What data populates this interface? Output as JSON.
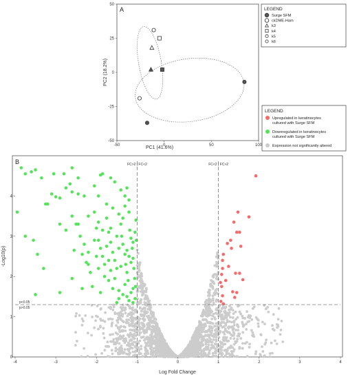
{
  "chart_data": [
    {
      "type": "scatter",
      "panel": "A",
      "xlabel": "PC1 (41.6%)",
      "ylabel": "PC2 (18.2%)",
      "xlim": [
        -50,
        100
      ],
      "ylim": [
        -50,
        50
      ],
      "xticks": [
        "-50",
        "0",
        "50",
        "100"
      ],
      "yticks": [
        "-50",
        "-25",
        "0",
        "25",
        "50"
      ],
      "legend": {
        "title": "LEGEND",
        "position": "right",
        "entries": [
          {
            "label": "Surge SFM",
            "marker": "filled-circle"
          },
          {
            "label": "ckDME-Ham",
            "marker": "open-circle"
          },
          {
            "label": "k3",
            "marker": "triangle"
          },
          {
            "label": "k4",
            "marker": "square"
          },
          {
            "label": "k5",
            "marker": "circle"
          },
          {
            "label": "k6",
            "marker": "circle"
          }
        ]
      },
      "points": [
        {
          "x": -11,
          "y": 31,
          "marker": "circle",
          "filled": false
        },
        {
          "x": -5,
          "y": 25,
          "marker": "square",
          "filled": false
        },
        {
          "x": -13,
          "y": 18,
          "marker": "triangle",
          "filled": false
        },
        {
          "x": -14,
          "y": 2,
          "marker": "triangle",
          "filled": true
        },
        {
          "x": -2,
          "y": 2,
          "marker": "square",
          "filled": true
        },
        {
          "x": -26,
          "y": -19,
          "marker": "circle",
          "filled": false
        },
        {
          "x": -18,
          "y": -37,
          "marker": "circle",
          "filled": true
        },
        {
          "x": 85,
          "y": -7,
          "marker": "circle",
          "filled": true
        }
      ],
      "ellipses": [
        {
          "cx": -15,
          "cy": 7,
          "rx": 12,
          "ry": 27,
          "angle": 10
        },
        {
          "cx": 27,
          "cy": -13,
          "rx": 58,
          "ry": 23,
          "angle": 8
        }
      ]
    },
    {
      "type": "scatter",
      "panel": "B",
      "xlabel": "Log Fold Change",
      "ylabel": "-Log10(p)",
      "xlim": [
        -4,
        4
      ],
      "ylim": [
        0,
        5
      ],
      "xticks": [
        "-4",
        "-3",
        "-2",
        "-1",
        "0",
        "1",
        "2",
        "3",
        "4"
      ],
      "yticks": [
        "0",
        "1",
        "2",
        "3",
        "4"
      ],
      "thresholds": {
        "fc_left": -1,
        "fc_right": 1,
        "p_line": 1.3,
        "fc_left_label": "FC>2 | FC<2",
        "fc_right_label": "FC<2 | FC>2",
        "p_above_label": "p<0.05",
        "p_below_label": "p>0.05"
      },
      "legend": {
        "title": "LEGEND",
        "position": "top-right",
        "entries": [
          {
            "label_lines": [
              "Upregulated  in keratinocytes",
              "cultured with Surge SFM"
            ],
            "color": "#f36b6b"
          },
          {
            "label_lines": [
              "Downregulated in keratinocytes",
              "cultured with Surge SFM"
            ],
            "color": "#55e35a"
          },
          {
            "label_lines": [
              "Expression not significantly altered"
            ],
            "color": "#cccccc"
          }
        ]
      },
      "series": [
        {
          "name": "Upregulated  in keratinocytes cultured with Surge SFM",
          "color": "#f36b6b",
          "points": [
            [
              1.92,
              4.5
            ],
            [
              1.75,
              3.48
            ],
            [
              1.48,
              3.6
            ],
            [
              1.38,
              3.35
            ],
            [
              1.45,
              3.1
            ],
            [
              1.52,
              3.1
            ],
            [
              1.3,
              2.9
            ],
            [
              1.55,
              2.75
            ],
            [
              1.22,
              2.82
            ],
            [
              1.32,
              2.7
            ],
            [
              1.12,
              2.55
            ],
            [
              1.1,
              2.4
            ],
            [
              1.1,
              2.2
            ],
            [
              1.25,
              2.25
            ],
            [
              1.08,
              2.05
            ],
            [
              1.42,
              2.08
            ],
            [
              1.52,
              2.08
            ],
            [
              1.6,
              1.92
            ],
            [
              1.18,
              1.9
            ],
            [
              1.05,
              1.85
            ],
            [
              1.08,
              1.75
            ],
            [
              1.35,
              1.62
            ],
            [
              1.45,
              1.6
            ],
            [
              1.1,
              1.52
            ],
            [
              1.4,
              1.48
            ],
            [
              1.06,
              1.38
            ],
            [
              1.12,
              1.32
            ]
          ]
        },
        {
          "name": "Downregulated in keratinocytes cultured with Surge SFM",
          "color": "#55e35a",
          "points": [
            [
              -3.85,
              4.7
            ],
            [
              -3.75,
              4.55
            ],
            [
              -3.6,
              4.6
            ],
            [
              -3.5,
              4.65
            ],
            [
              -3.35,
              4.45
            ],
            [
              -3.05,
              4.55
            ],
            [
              -2.8,
              4.55
            ],
            [
              -2.6,
              4.7
            ],
            [
              -2.45,
              4.45
            ],
            [
              -1.9,
              4.52
            ],
            [
              -1.85,
              4.55
            ],
            [
              -1.65,
              4.45
            ],
            [
              -3.25,
              3.8
            ],
            [
              -3.2,
              3.8
            ],
            [
              -3.1,
              4.05
            ],
            [
              -3.0,
              3.98
            ],
            [
              -2.9,
              3.95
            ],
            [
              -2.75,
              4.2
            ],
            [
              -2.65,
              4.3
            ],
            [
              -2.6,
              4.1
            ],
            [
              -2.45,
              4.05
            ],
            [
              -2.3,
              4.0
            ],
            [
              -2.05,
              4.25
            ],
            [
              -1.95,
              4.0
            ],
            [
              -1.55,
              4.35
            ],
            [
              -1.4,
              4.15
            ],
            [
              -1.3,
              4.0
            ],
            [
              -1.2,
              3.9
            ],
            [
              -1.25,
              4.2
            ],
            [
              -3.95,
              3.6
            ],
            [
              -3.75,
              3.0
            ],
            [
              -3.55,
              2.9
            ],
            [
              -3.5,
              1.55
            ],
            [
              -3.45,
              2.55
            ],
            [
              -3.3,
              2.2
            ],
            [
              -2.9,
              3.3
            ],
            [
              -2.75,
              3.15
            ],
            [
              -2.6,
              3.5
            ],
            [
              -2.5,
              3.3
            ],
            [
              -2.4,
              3.0
            ],
            [
              -2.3,
              2.8
            ],
            [
              -2.2,
              2.6
            ],
            [
              -2.25,
              2.35
            ],
            [
              -2.15,
              2.1
            ],
            [
              -2.05,
              3.6
            ],
            [
              -2.0,
              3.2
            ],
            [
              -1.95,
              2.9
            ],
            [
              -1.9,
              2.7
            ],
            [
              -1.85,
              2.5
            ],
            [
              -1.8,
              2.3
            ],
            [
              -1.75,
              3.45
            ],
            [
              -1.7,
              3.1
            ],
            [
              -1.65,
              2.85
            ],
            [
              -1.6,
              2.6
            ],
            [
              -1.55,
              2.4
            ],
            [
              -1.5,
              2.2
            ],
            [
              -1.45,
              3.55
            ],
            [
              -1.4,
              3.3
            ],
            [
              -1.38,
              3.0
            ],
            [
              -1.35,
              2.8
            ],
            [
              -1.3,
              2.55
            ],
            [
              -1.28,
              2.3
            ],
            [
              -1.25,
              2.1
            ],
            [
              -1.22,
              1.9
            ],
            [
              -1.2,
              3.6
            ],
            [
              -1.18,
              3.15
            ],
            [
              -1.15,
              2.95
            ],
            [
              -1.12,
              2.7
            ],
            [
              -1.1,
              2.45
            ],
            [
              -1.08,
              2.2
            ],
            [
              -1.06,
              1.95
            ],
            [
              -1.04,
              1.75
            ],
            [
              -1.03,
              3.4
            ],
            [
              -1.02,
              2.9
            ],
            [
              -1.6,
              1.7
            ],
            [
              -1.7,
              1.9
            ],
            [
              -1.8,
              2.0
            ],
            [
              -1.35,
              1.55
            ],
            [
              -1.45,
              1.45
            ],
            [
              -1.2,
              1.4
            ],
            [
              -1.1,
              1.35
            ],
            [
              -1.5,
              1.35
            ],
            [
              -1.9,
              1.6
            ],
            [
              -2.1,
              1.75
            ],
            [
              -2.35,
              1.7
            ],
            [
              -2.6,
              1.95
            ],
            [
              -2.9,
              1.6
            ],
            [
              -1.75,
              3.8
            ],
            [
              -1.6,
              3.7
            ],
            [
              -1.3,
              3.75
            ],
            [
              -2.2,
              3.5
            ],
            [
              -2.45,
              3.3
            ],
            [
              -1.95,
              3.35
            ],
            [
              -1.85,
              3.15
            ],
            [
              -1.65,
              3.2
            ],
            [
              -1.5,
              3.0
            ],
            [
              -1.25,
              2.65
            ],
            [
              -1.15,
              2.35
            ],
            [
              -1.4,
              2.25
            ],
            [
              -1.7,
              2.4
            ],
            [
              -2.0,
              2.5
            ],
            [
              -2.35,
              2.55
            ],
            [
              -2.55,
              2.65
            ],
            [
              -1.55,
              1.95
            ],
            [
              -1.3,
              1.8
            ],
            [
              -1.15,
              1.6
            ],
            [
              -1.05,
              1.45
            ],
            [
              -1.65,
              2.15
            ],
            [
              -1.95,
              2.2
            ],
            [
              -2.2,
              2.3
            ],
            [
              -1.45,
              2.7
            ],
            [
              -1.75,
              2.75
            ],
            [
              -2.05,
              2.9
            ],
            [
              -1.35,
              3.45
            ],
            [
              -1.05,
              3.1
            ],
            [
              -1.1,
              2.85
            ],
            [
              -1.2,
              2.5
            ],
            [
              -1.45,
              1.65
            ],
            [
              -1.25,
              1.5
            ],
            [
              -1.1,
              1.7
            ]
          ]
        },
        {
          "name": "Expression not significantly altered",
          "color": "#cccccc",
          "generated_background": true
        }
      ]
    }
  ]
}
